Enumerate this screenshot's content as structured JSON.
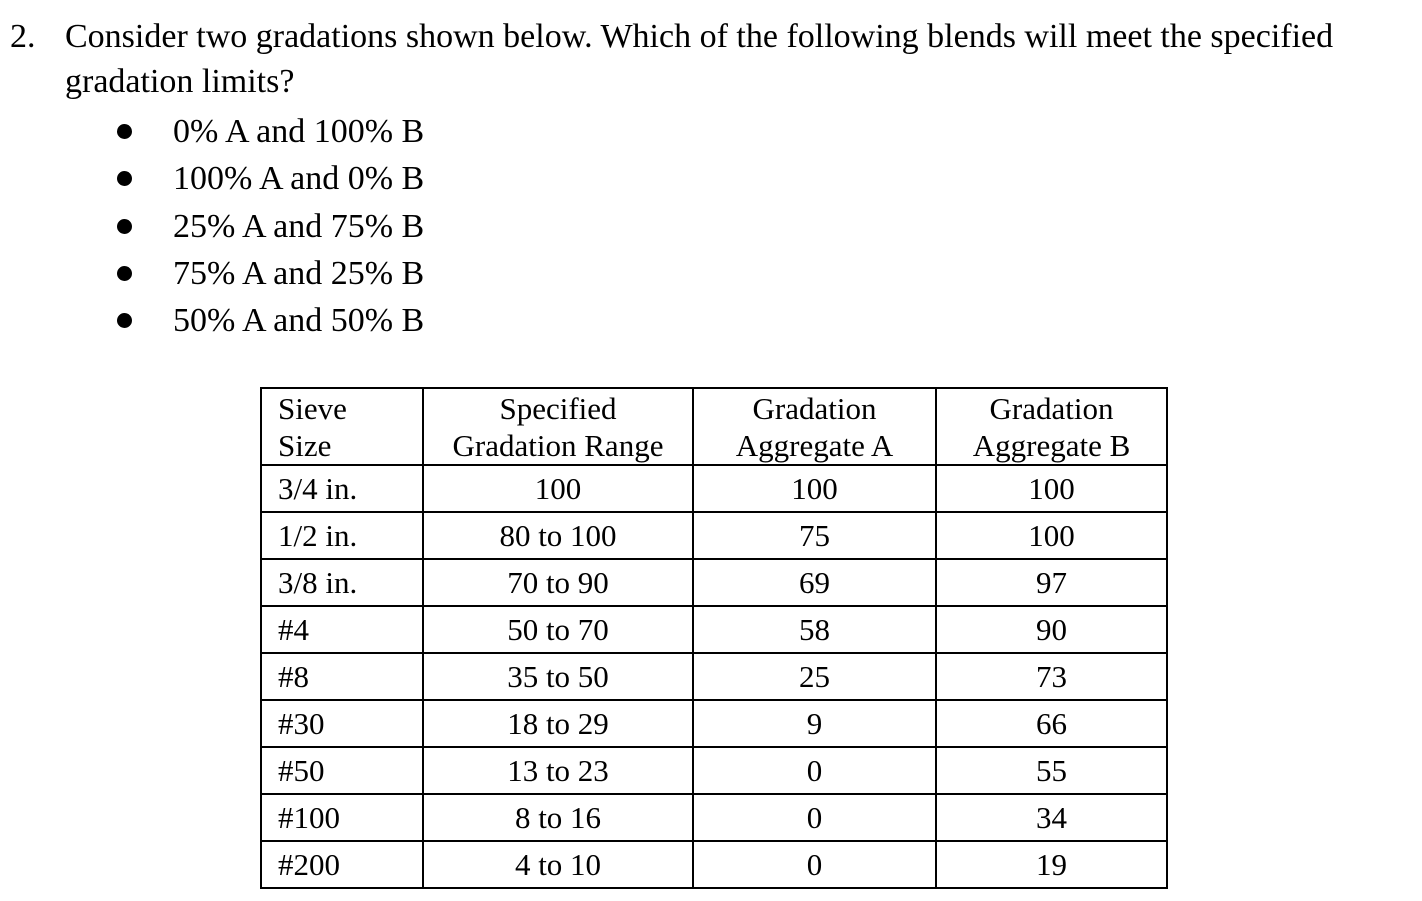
{
  "question": {
    "number": "2.",
    "text": "Consider two gradations shown below. Which of the following blends will meet the specified gradation limits?"
  },
  "options": [
    "0% A and 100% B",
    "100% A and 0% B",
    "25% A and 75% B",
    "75% A and 25% B",
    "50% A and 50% B"
  ],
  "table": {
    "headers": [
      {
        "line1": "Sieve",
        "line2": "Size"
      },
      {
        "line1": "Specified",
        "line2": "Gradation Range"
      },
      {
        "line1": "Gradation",
        "line2": "Aggregate A"
      },
      {
        "line1": "Gradation",
        "line2": "Aggregate B"
      }
    ],
    "rows": [
      [
        "3/4 in.",
        "100",
        "100",
        "100"
      ],
      [
        "1/2 in.",
        "80 to 100",
        "75",
        "100"
      ],
      [
        "3/8 in.",
        "70 to 90",
        "69",
        "97"
      ],
      [
        "#4",
        "50 to 70",
        "58",
        "90"
      ],
      [
        "#8",
        "35 to 50",
        "25",
        "73"
      ],
      [
        "#30",
        "18 to 29",
        "9",
        "66"
      ],
      [
        "#50",
        "13 to 23",
        "0",
        "55"
      ],
      [
        "#100",
        "8 to 16",
        "0",
        "34"
      ],
      [
        "#200",
        "4 to 10",
        "0",
        "19"
      ]
    ]
  }
}
